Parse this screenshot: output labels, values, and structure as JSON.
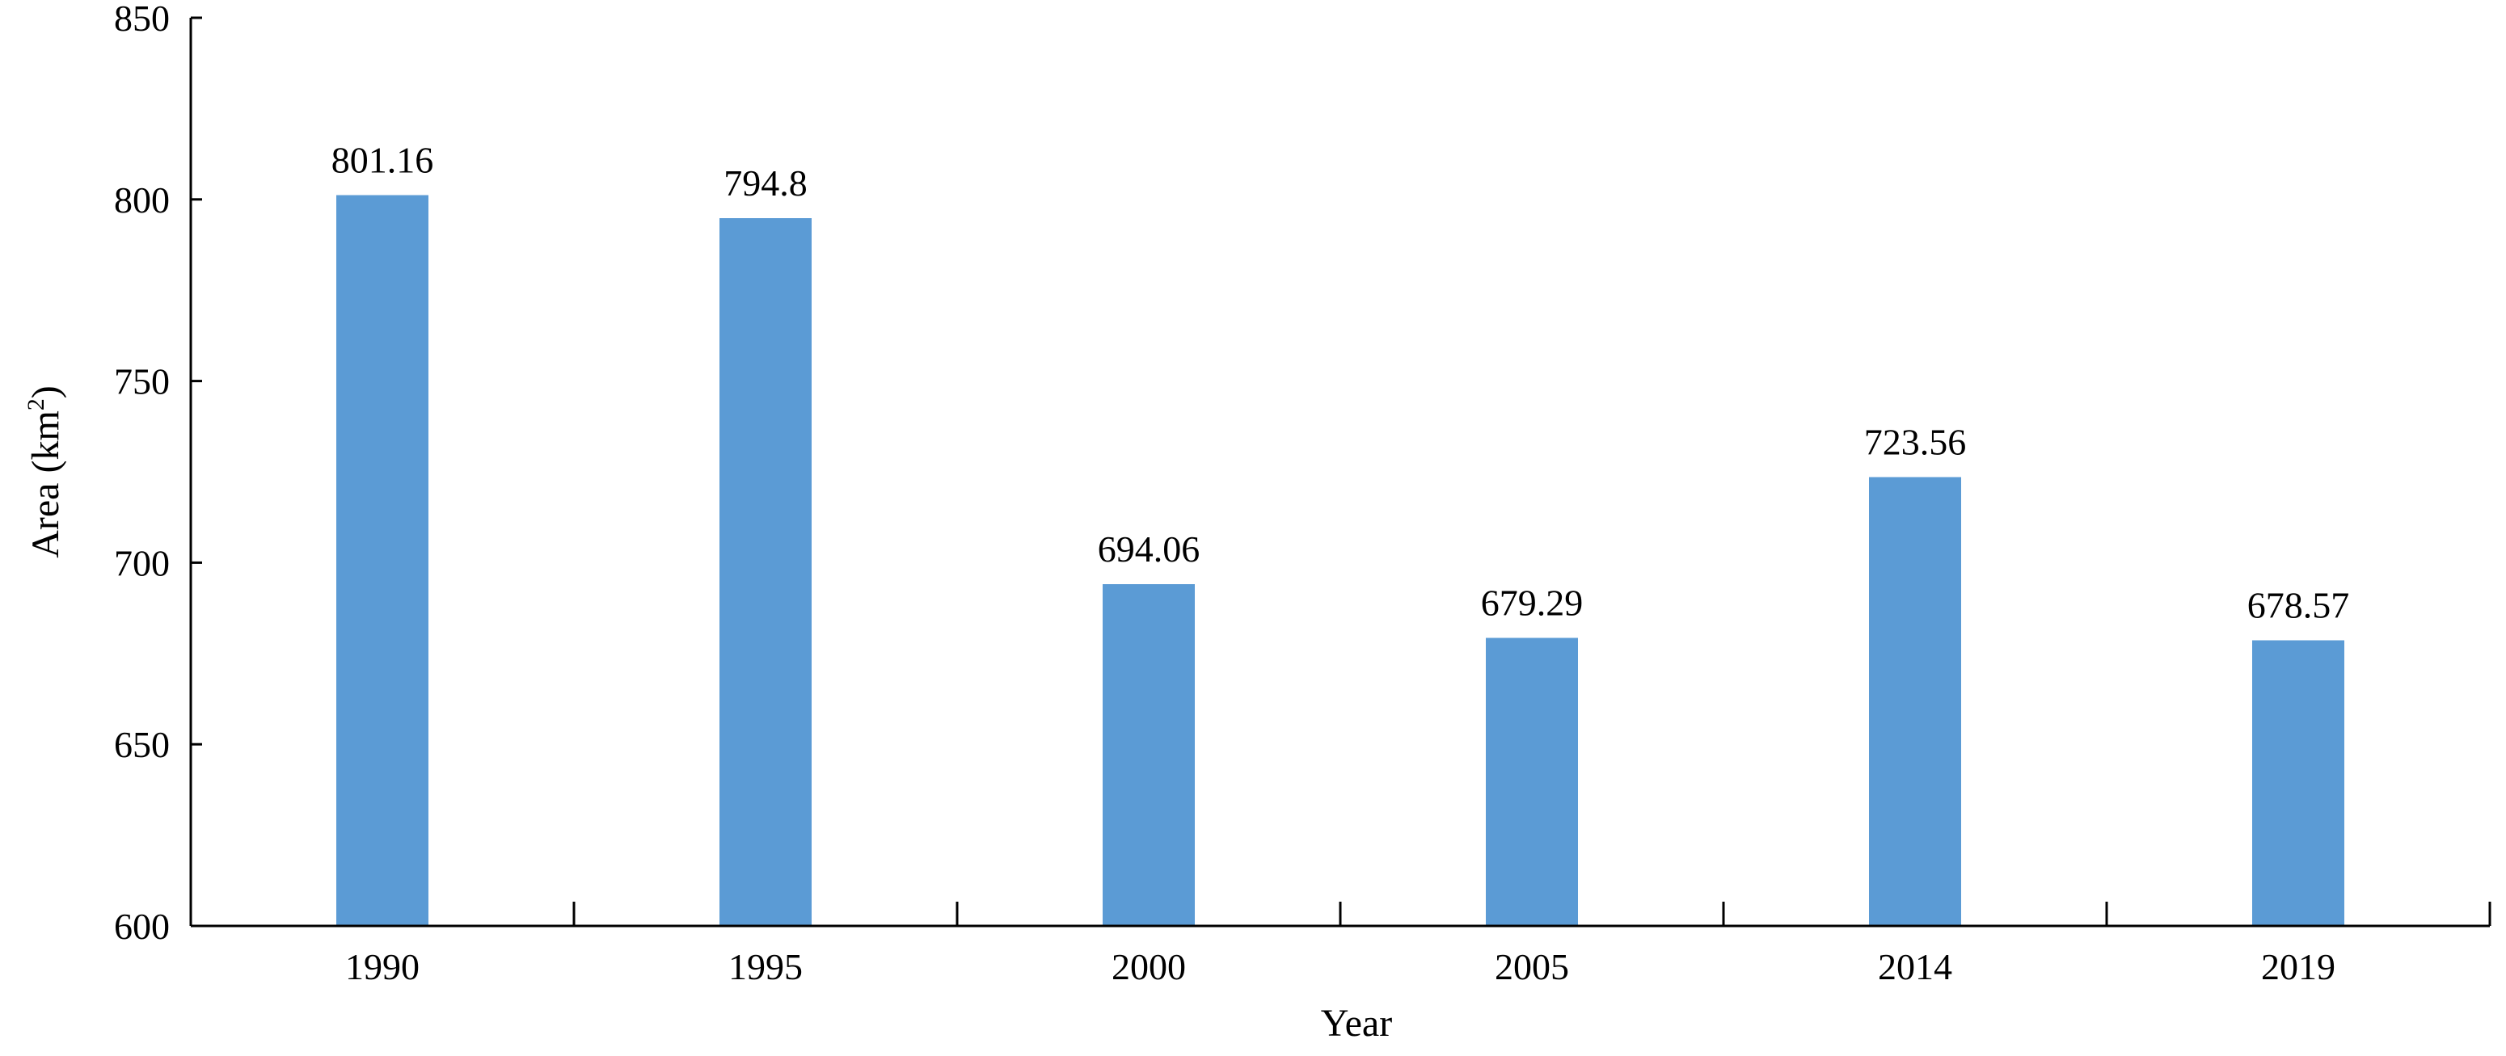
{
  "chart_data": {
    "type": "bar",
    "categories": [
      "1990",
      "1995",
      "2000",
      "2005",
      "2014",
      "2019"
    ],
    "values": [
      801.16,
      794.8,
      694.06,
      679.29,
      723.56,
      678.57
    ],
    "data_labels": [
      "801.16",
      "794.8",
      "694.06",
      "679.29",
      "723.56",
      "678.57"
    ],
    "title": "",
    "xlabel": "Year",
    "ylabel_main": "Area (km",
    "ylabel_sup": "2",
    "ylabel_end": ")",
    "ylim": [
      600,
      850
    ],
    "yticks": [
      600,
      650,
      700,
      750,
      800,
      850
    ],
    "ytick_labels": [
      "600",
      "650",
      "700",
      "750",
      "800",
      "850"
    ],
    "grid": false,
    "legend": "none",
    "bar_color": "#5B9BD5"
  }
}
